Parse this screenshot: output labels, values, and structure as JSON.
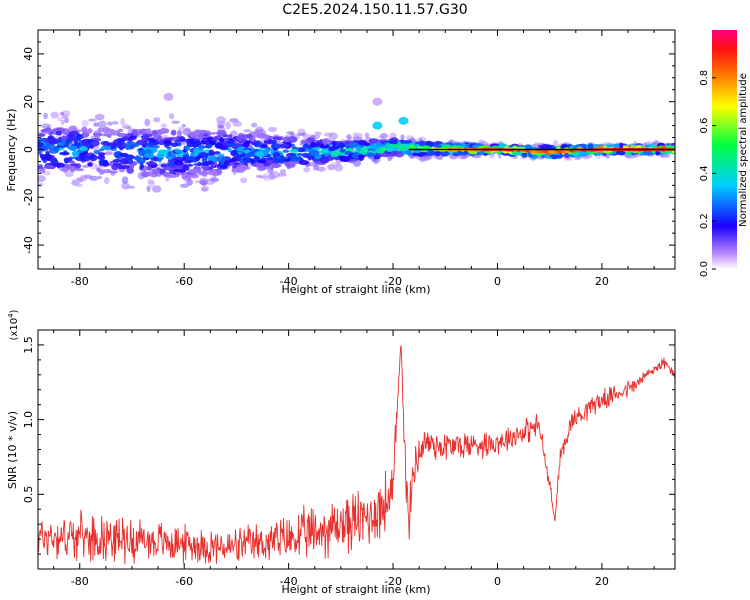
{
  "title": "C2E5.2024.150.11.57.G30",
  "chart_data": [
    {
      "type": "heatmap",
      "xlabel": "Height of straight line (km)",
      "ylabel": "Frequency (Hz)",
      "xlim": [
        -88,
        34
      ],
      "ylim": [
        -50,
        50
      ],
      "xticks": [
        -80,
        -60,
        -40,
        -20,
        0,
        20
      ],
      "yticks": [
        -40,
        -20,
        0,
        20,
        40
      ],
      "grid": false,
      "colorbar": {
        "label": "Normalized spectral amplitude",
        "range": [
          0,
          1
        ],
        "ticks": [
          "0.0",
          "0.2",
          "0.4",
          "0.6",
          "0.8"
        ]
      },
      "trend_line": {
        "x": [
          -17,
          34
        ],
        "y": [
          0,
          0
        ]
      },
      "band": [
        {
          "x": -88,
          "center": 0,
          "halfwidth": 9,
          "peak": 0.35
        },
        {
          "x": -80,
          "center": 0,
          "halfwidth": 9,
          "peak": 0.35
        },
        {
          "x": -70,
          "center": -1,
          "halfwidth": 9,
          "peak": 0.35
        },
        {
          "x": -60,
          "center": -2,
          "halfwidth": 10,
          "peak": 0.35
        },
        {
          "x": -50,
          "center": -1,
          "halfwidth": 8,
          "peak": 0.35
        },
        {
          "x": -40,
          "center": -1,
          "halfwidth": 6,
          "peak": 0.4
        },
        {
          "x": -30,
          "center": -1,
          "halfwidth": 4,
          "peak": 0.45
        },
        {
          "x": -20,
          "center": 1,
          "halfwidth": 3,
          "peak": 0.6
        },
        {
          "x": -10,
          "center": 0,
          "halfwidth": 2,
          "peak": 0.8
        },
        {
          "x": 0,
          "center": 0,
          "halfwidth": 1.5,
          "peak": 0.95
        },
        {
          "x": 10,
          "center": -1,
          "halfwidth": 2,
          "peak": 0.9
        },
        {
          "x": 20,
          "center": 0,
          "halfwidth": 1.5,
          "peak": 0.95
        },
        {
          "x": 34,
          "center": 0,
          "halfwidth": 1.5,
          "peak": 0.95
        }
      ],
      "features": [
        {
          "x": -23,
          "y": 10,
          "amplitude": 0.35
        },
        {
          "x": -18,
          "y": 12,
          "amplitude": 0.35
        },
        {
          "x": -23,
          "y": 20,
          "amplitude": 0.05
        },
        {
          "x": -63,
          "y": 22,
          "amplitude": 0.05
        }
      ]
    },
    {
      "type": "line",
      "xlabel": "Height of straight line (km)",
      "ylabel": "SNR (10 * v/v)",
      "yscale_label": "(x10^4)",
      "xlim": [
        -88,
        34
      ],
      "ylim": [
        0,
        1.6
      ],
      "xticks": [
        -80,
        -60,
        -40,
        -20,
        0,
        20
      ],
      "yticks": [
        "0.5",
        "1.0",
        "1.5"
      ],
      "grid": false,
      "series": [
        {
          "color": "#e8302d",
          "x": [
            -88,
            -80,
            -70,
            -60,
            -52,
            -48,
            -40,
            -35,
            -30,
            -25,
            -22,
            -20,
            -18.5,
            -17.5,
            -17,
            -16,
            -14,
            -10,
            -5,
            0,
            5,
            8,
            10,
            11,
            12,
            14,
            18,
            22,
            26,
            28,
            30,
            32,
            34
          ],
          "y": [
            0.22,
            0.22,
            0.2,
            0.17,
            0.14,
            0.16,
            0.2,
            0.24,
            0.3,
            0.34,
            0.42,
            0.5,
            1.55,
            0.55,
            0.3,
            0.7,
            0.85,
            0.82,
            0.83,
            0.85,
            0.92,
            0.96,
            0.55,
            0.32,
            0.75,
            0.98,
            1.1,
            1.16,
            1.22,
            1.28,
            1.34,
            1.38,
            1.3
          ],
          "noise": [
            0.12,
            0.12,
            0.12,
            0.1,
            0.1,
            0.1,
            0.13,
            0.15,
            0.16,
            0.17,
            0.18,
            0.18,
            0.02,
            0.18,
            0.12,
            0.12,
            0.1,
            0.09,
            0.08,
            0.07,
            0.07,
            0.07,
            0.05,
            0.02,
            0.05,
            0.06,
            0.06,
            0.05,
            0.05,
            0.04,
            0.04,
            0.03,
            0.03
          ]
        }
      ]
    }
  ]
}
